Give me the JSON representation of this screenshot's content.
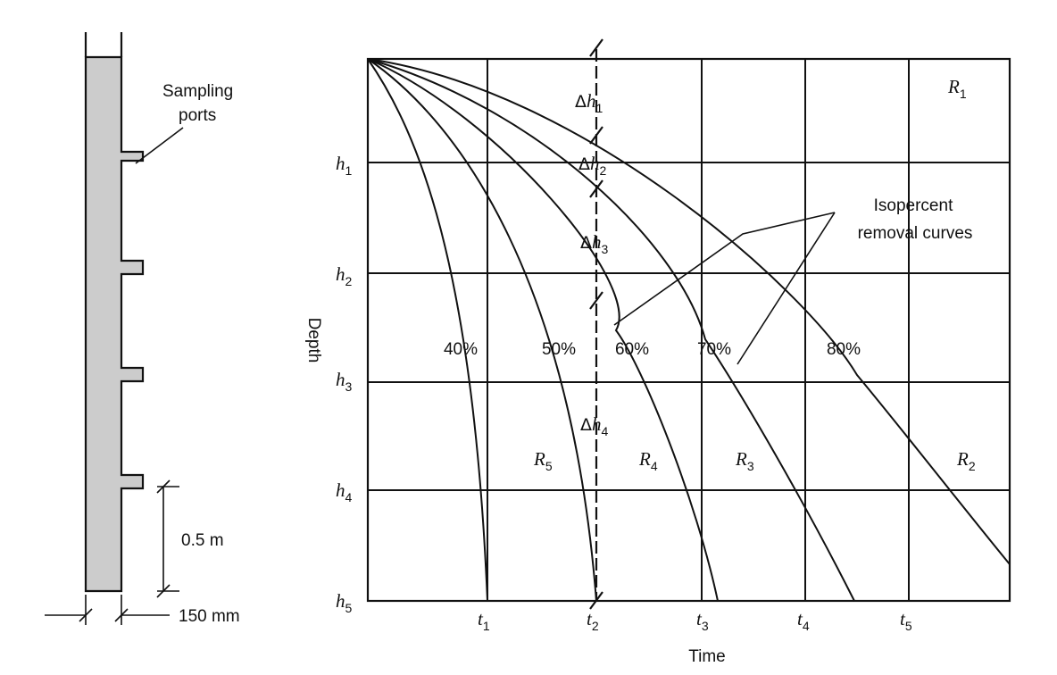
{
  "column": {
    "ports_label_line1": "Sampling",
    "ports_label_line2": "ports",
    "port_spacing_label": "0.5 m",
    "width_label": "150 mm"
  },
  "chart": {
    "xlabel": "Time",
    "ylabel": "Depth",
    "depth_levels": [
      {
        "letter": "h",
        "sub": "1"
      },
      {
        "letter": "h",
        "sub": "2"
      },
      {
        "letter": "h",
        "sub": "3"
      },
      {
        "letter": "h",
        "sub": "4"
      },
      {
        "letter": "h",
        "sub": "5"
      }
    ],
    "time_ticks": [
      {
        "letter": "t",
        "sub": "1"
      },
      {
        "letter": "t",
        "sub": "2"
      },
      {
        "letter": "t",
        "sub": "3"
      },
      {
        "letter": "t",
        "sub": "4"
      },
      {
        "letter": "t",
        "sub": "5"
      }
    ],
    "curves": [
      "40%",
      "50%",
      "60%",
      "70%",
      "80%"
    ],
    "delta_labels": [
      {
        "symbol": "Δ",
        "letter": "h",
        "sub": "1"
      },
      {
        "symbol": "Δ",
        "letter": "h",
        "sub": "2"
      },
      {
        "symbol": "Δ",
        "letter": "h",
        "sub": "3"
      },
      {
        "symbol": "Δ",
        "letter": "h",
        "sub": "4"
      }
    ],
    "regions": [
      {
        "letter": "R",
        "sub": "1"
      },
      {
        "letter": "R",
        "sub": "2"
      },
      {
        "letter": "R",
        "sub": "3"
      },
      {
        "letter": "R",
        "sub": "4"
      },
      {
        "letter": "R",
        "sub": "5"
      }
    ],
    "callout_line1": "Isopercent",
    "callout_line2": "removal curves"
  }
}
